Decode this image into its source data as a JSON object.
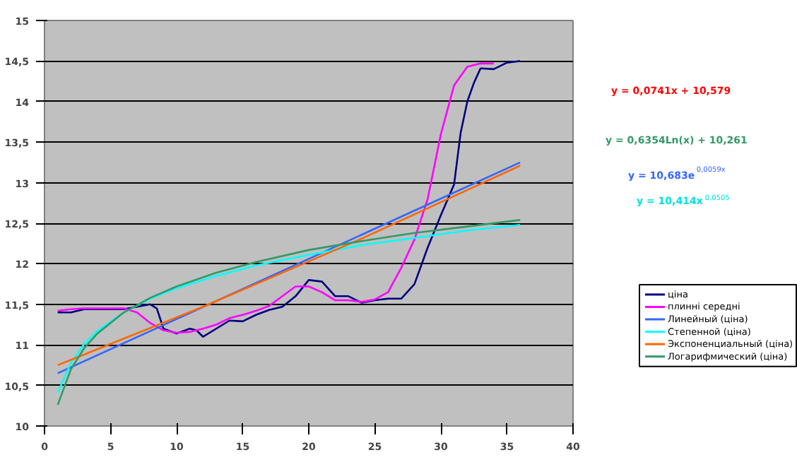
{
  "chart_data": {
    "type": "line",
    "x": [
      1,
      2,
      3,
      4,
      5,
      6,
      7,
      8,
      8.5,
      9,
      10,
      11,
      11.5,
      12,
      13,
      14,
      15,
      16,
      17,
      18,
      19,
      20,
      21,
      22,
      23,
      24,
      25,
      26,
      27,
      28,
      29,
      30,
      31,
      31.5,
      32,
      32.5,
      33,
      34,
      35,
      36
    ],
    "xlim": [
      0,
      40
    ],
    "xticks": [
      0,
      5,
      10,
      15,
      20,
      25,
      30,
      35,
      40
    ],
    "ylim": [
      10,
      15
    ],
    "yticks": [
      {
        "value": 10,
        "label": "10"
      },
      {
        "value": 10.5,
        "label": "10,5"
      },
      {
        "value": 11,
        "label": "11"
      },
      {
        "value": 11.5,
        "label": "11,5"
      },
      {
        "value": 12,
        "label": "12"
      },
      {
        "value": 12.5,
        "label": "12,5"
      },
      {
        "value": 13,
        "label": "13"
      },
      {
        "value": 13.5,
        "label": "13,5"
      },
      {
        "value": 14,
        "label": "14"
      },
      {
        "value": 14.5,
        "label": "14,5"
      },
      {
        "value": 15,
        "label": "15"
      }
    ],
    "grid": "y",
    "legend": "bottom right",
    "marker": "none",
    "line_style": "solid",
    "series": [
      {
        "name": "ціна",
        "color": "#000080",
        "values": [
          11.4,
          11.4,
          11.44,
          11.44,
          11.44,
          11.44,
          11.47,
          11.5,
          11.45,
          11.2,
          11.14,
          11.2,
          11.18,
          11.1,
          11.2,
          11.3,
          11.29,
          11.37,
          11.43,
          11.47,
          11.6,
          11.8,
          11.78,
          11.6,
          11.6,
          11.52,
          11.55,
          11.57,
          11.57,
          11.75,
          12.2,
          12.6,
          12.98,
          13.62,
          14.0,
          14.23,
          14.41,
          14.4,
          14.48,
          14.5
        ]
      },
      {
        "name": "плинні середні",
        "color": "#ff00ff",
        "x": [
          1,
          2,
          3,
          4,
          5,
          6,
          7,
          8,
          9,
          10,
          11,
          12,
          13,
          14,
          15,
          16,
          17,
          18,
          19,
          20,
          21,
          22,
          23,
          24,
          25,
          26,
          27,
          28,
          29,
          30,
          31,
          32,
          33,
          34
        ],
        "values": [
          11.42,
          11.44,
          11.45,
          11.45,
          11.45,
          11.45,
          11.4,
          11.27,
          11.18,
          11.15,
          11.16,
          11.2,
          11.25,
          11.33,
          11.37,
          11.42,
          11.48,
          11.6,
          11.72,
          11.72,
          11.65,
          11.55,
          11.55,
          11.53,
          11.56,
          11.65,
          11.95,
          12.3,
          12.8,
          13.6,
          14.2,
          14.43,
          14.47,
          14.47
        ]
      },
      {
        "name": "Линейный (ціна)",
        "color": "#3366ff",
        "x": [
          1,
          36
        ],
        "values": [
          10.65,
          13.25
        ]
      },
      {
        "name": "Степенной (ціна)",
        "color": "#00ffff",
        "x": [
          1,
          2,
          3,
          4,
          6,
          8,
          10,
          13,
          16,
          20,
          24,
          28,
          32,
          36
        ],
        "values": [
          10.41,
          10.78,
          11.01,
          11.17,
          11.4,
          11.57,
          11.7,
          11.85,
          11.98,
          12.11,
          12.23,
          12.32,
          12.41,
          12.48
        ]
      },
      {
        "name": "Экспоненциальный (ціна)",
        "color": "#ff6600",
        "x": [
          1,
          12,
          24,
          36
        ],
        "values": [
          10.75,
          11.47,
          12.31,
          13.21
        ]
      },
      {
        "name": "Логарифмический (ціна)",
        "color": "#339966",
        "x": [
          1,
          2,
          3,
          4,
          6,
          8,
          10,
          13,
          16,
          20,
          24,
          28,
          32,
          36
        ],
        "values": [
          10.26,
          10.7,
          10.96,
          11.14,
          11.4,
          11.58,
          11.72,
          11.89,
          12.02,
          12.17,
          12.28,
          12.38,
          12.46,
          12.54
        ]
      }
    ],
    "annotations": [
      "y = 0,0741x + 10,579",
      "y = 0,6354Ln(x) + 10,261",
      "y = 10,683e$^{0,0059x}$",
      "y = 10,414x$^{0,0505}$"
    ]
  }
}
